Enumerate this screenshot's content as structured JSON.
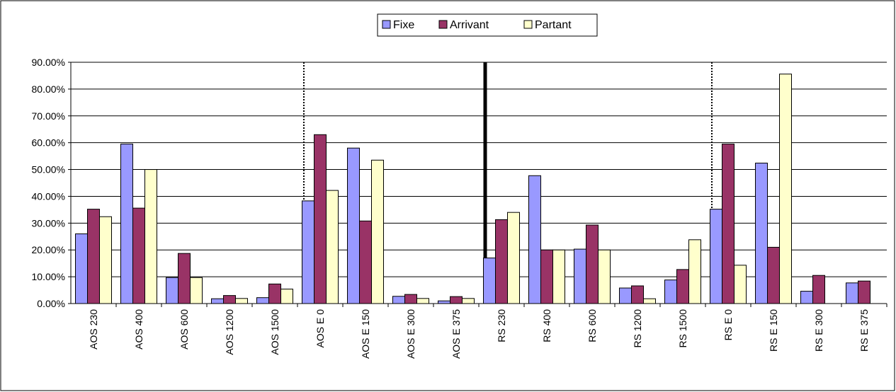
{
  "chart_data": {
    "type": "bar",
    "categories": [
      "AOS 230",
      "AOS 400",
      "AOS 600",
      "AOS 1200",
      "AOS 1500",
      "AOS E 0",
      "AOS E 150",
      "AOS E 300",
      "AOS E 375",
      "RS 230",
      "RS 400",
      "RS 600",
      "RS 1200",
      "RS 1500",
      "RS E 0",
      "RS E 150",
      "RS E 300",
      "RS E 375"
    ],
    "series": [
      {
        "name": "Fixe",
        "color": "#9999ff",
        "values": [
          26,
          59.5,
          9.7,
          1.8,
          2.2,
          38.3,
          58,
          2.7,
          1,
          17,
          47.7,
          20.3,
          5.8,
          8.8,
          35.2,
          52.4,
          4.6,
          7.7
        ]
      },
      {
        "name": "Arrivant",
        "color": "#993366",
        "values": [
          35.2,
          35.6,
          18.7,
          3,
          7.3,
          63,
          30.8,
          3.4,
          2.6,
          31.3,
          20,
          29.3,
          6.6,
          12.7,
          59.5,
          21,
          10.5,
          8.4
        ]
      },
      {
        "name": "Partant",
        "color": "#ffffcc",
        "values": [
          32.4,
          50,
          9.7,
          1.9,
          5.4,
          42.2,
          53.5,
          1.9,
          1.9,
          34,
          20,
          20,
          1.8,
          23.8,
          14.3,
          85.6,
          0,
          0
        ]
      }
    ],
    "ylim": [
      0,
      90
    ],
    "yticks": [
      {
        "value": 0,
        "label": "0.00%"
      },
      {
        "value": 10,
        "label": "10.00%"
      },
      {
        "value": 20,
        "label": "20.00%"
      },
      {
        "value": 30,
        "label": "30.00%"
      },
      {
        "value": 40,
        "label": "40.00%"
      },
      {
        "value": 50,
        "label": "50.00%"
      },
      {
        "value": 60,
        "label": "60.00%"
      },
      {
        "value": 70,
        "label": "70.00%"
      },
      {
        "value": 80,
        "label": "80.00%"
      },
      {
        "value": 90,
        "label": "90.00%"
      }
    ],
    "grid": true,
    "legend": "top"
  }
}
